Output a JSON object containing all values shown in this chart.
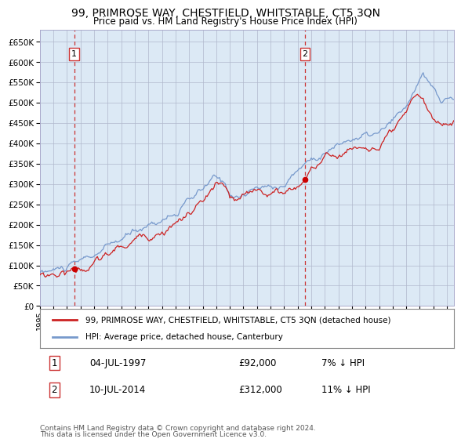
{
  "title": "99, PRIMROSE WAY, CHESTFIELD, WHITSTABLE, CT5 3QN",
  "subtitle": "Price paid vs. HM Land Registry's House Price Index (HPI)",
  "background_color": "#ffffff",
  "plot_bg_color": "#dce9f5",
  "sale1_year": 1997.54,
  "sale1_price": 92000,
  "sale2_year": 2014.54,
  "sale2_price": 312000,
  "legend1": "99, PRIMROSE WAY, CHESTFIELD, WHITSTABLE, CT5 3QN (detached house)",
  "legend2": "HPI: Average price, detached house, Canterbury",
  "annot1_date": "04-JUL-1997",
  "annot1_price": "£92,000",
  "annot1_hpi": "7% ↓ HPI",
  "annot2_date": "10-JUL-2014",
  "annot2_price": "£312,000",
  "annot2_hpi": "11% ↓ HPI",
  "footer_line1": "Contains HM Land Registry data © Crown copyright and database right 2024.",
  "footer_line2": "This data is licensed under the Open Government Licence v3.0.",
  "hpi_color": "#7799cc",
  "price_color": "#cc2222",
  "marker_color": "#cc0000",
  "vline_color": "#cc3333",
  "grid_color": "#b0b8cc",
  "ylim_max": 680000,
  "xlim_start": 1995.0,
  "xlim_end": 2025.5,
  "hpi_keypoints": [
    [
      1995.0,
      81000
    ],
    [
      1996.0,
      86000
    ],
    [
      1997.0,
      92000
    ],
    [
      1998.0,
      102000
    ],
    [
      1999.0,
      118000
    ],
    [
      2000.0,
      138000
    ],
    [
      2001.0,
      155000
    ],
    [
      2002.0,
      175000
    ],
    [
      2003.0,
      196000
    ],
    [
      2004.0,
      215000
    ],
    [
      2005.0,
      228000
    ],
    [
      2006.0,
      255000
    ],
    [
      2007.0,
      278000
    ],
    [
      2007.8,
      305000
    ],
    [
      2008.5,
      295000
    ],
    [
      2009.0,
      272000
    ],
    [
      2009.8,
      268000
    ],
    [
      2010.5,
      278000
    ],
    [
      2011.0,
      285000
    ],
    [
      2012.0,
      288000
    ],
    [
      2013.0,
      298000
    ],
    [
      2014.0,
      335000
    ],
    [
      2015.0,
      365000
    ],
    [
      2016.0,
      385000
    ],
    [
      2017.0,
      400000
    ],
    [
      2018.0,
      415000
    ],
    [
      2019.0,
      418000
    ],
    [
      2020.0,
      420000
    ],
    [
      2021.0,
      445000
    ],
    [
      2022.0,
      475000
    ],
    [
      2022.8,
      540000
    ],
    [
      2023.2,
      560000
    ],
    [
      2023.8,
      530000
    ],
    [
      2024.5,
      495000
    ],
    [
      2025.5,
      500000
    ]
  ],
  "prop_keypoints": [
    [
      1995.0,
      76000
    ],
    [
      1996.0,
      80000
    ],
    [
      1997.54,
      92000
    ],
    [
      1998.5,
      100000
    ],
    [
      1999.5,
      114000
    ],
    [
      2000.5,
      132000
    ],
    [
      2001.5,
      148000
    ],
    [
      2002.5,
      168000
    ],
    [
      2003.5,
      185000
    ],
    [
      2004.5,
      205000
    ],
    [
      2005.5,
      220000
    ],
    [
      2006.5,
      244000
    ],
    [
      2007.5,
      270000
    ],
    [
      2008.0,
      295000
    ],
    [
      2008.5,
      285000
    ],
    [
      2009.0,
      256000
    ],
    [
      2009.5,
      244000
    ],
    [
      2010.5,
      258000
    ],
    [
      2011.0,
      272000
    ],
    [
      2012.0,
      273000
    ],
    [
      2013.0,
      275000
    ],
    [
      2014.0,
      295000
    ],
    [
      2014.54,
      312000
    ],
    [
      2015.0,
      345000
    ],
    [
      2016.0,
      365000
    ],
    [
      2017.0,
      375000
    ],
    [
      2018.0,
      390000
    ],
    [
      2019.0,
      395000
    ],
    [
      2020.0,
      388000
    ],
    [
      2021.0,
      415000
    ],
    [
      2022.0,
      445000
    ],
    [
      2022.8,
      500000
    ],
    [
      2023.2,
      495000
    ],
    [
      2023.8,
      450000
    ],
    [
      2024.5,
      430000
    ],
    [
      2025.5,
      445000
    ]
  ]
}
